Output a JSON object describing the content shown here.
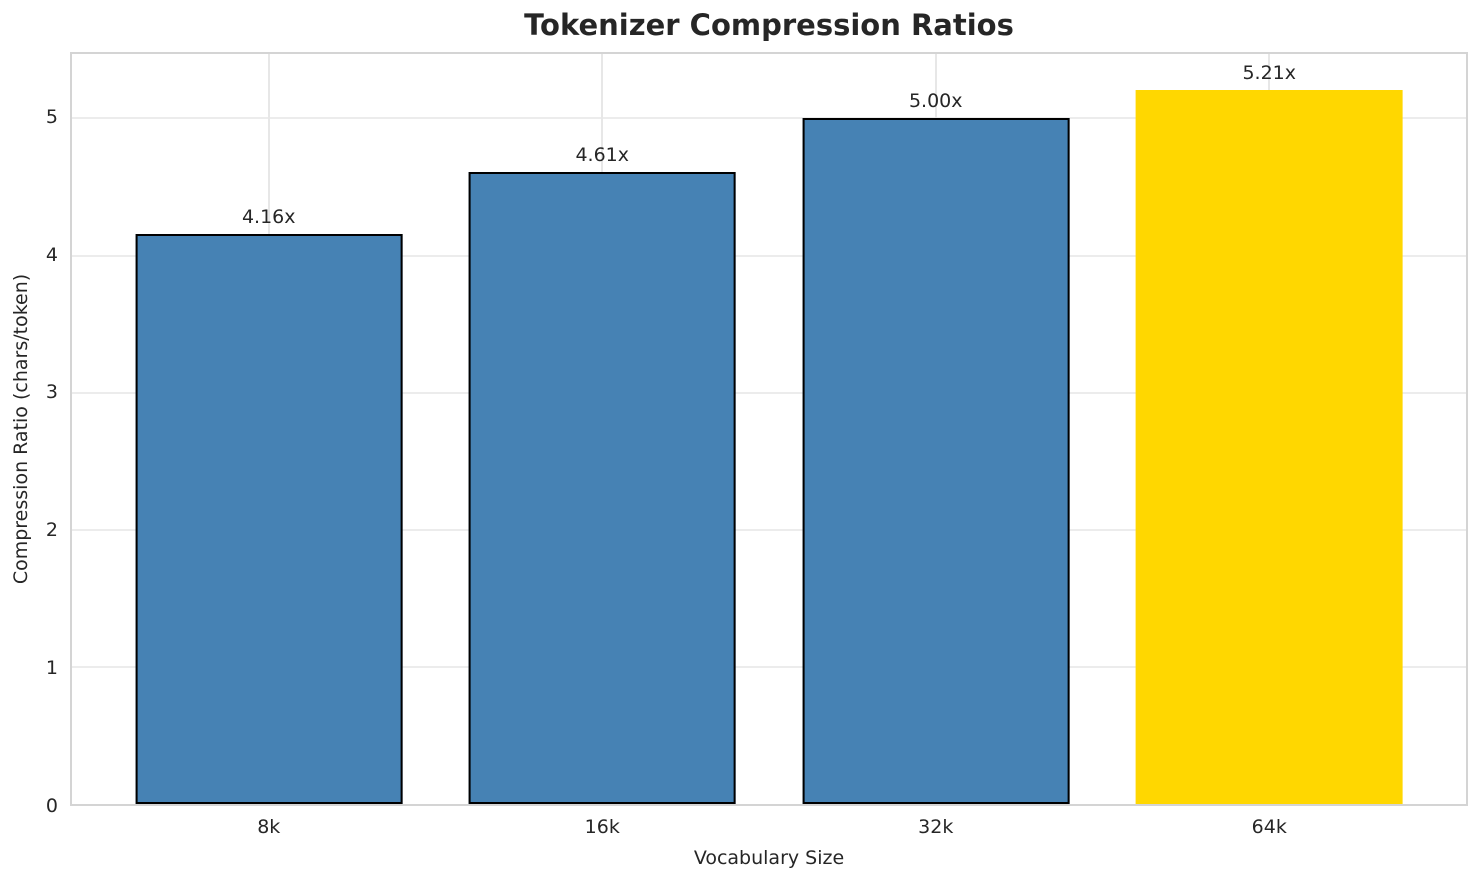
{
  "chart_data": {
    "type": "bar",
    "title": "Tokenizer Compression Ratios",
    "xlabel": "Vocabulary Size",
    "ylabel": "Compression Ratio (chars/token)",
    "categories": [
      "8k",
      "16k",
      "32k",
      "64k"
    ],
    "values": [
      4.16,
      4.61,
      5.0,
      5.21
    ],
    "bar_labels": [
      "4.16x",
      "4.61x",
      "5.00x",
      "5.21x"
    ],
    "bar_colors": [
      "#4682b4",
      "#4682b4",
      "#4682b4",
      "#ffd700"
    ],
    "bar_edge_colors": [
      "#000000",
      "#000000",
      "#000000",
      "none"
    ],
    "ylim": [
      0,
      5.47
    ],
    "yticks": [
      0,
      1,
      2,
      3,
      4,
      5
    ],
    "grid": "both",
    "legend": "none",
    "colors": {
      "default_bar": "#4682b4",
      "highlight_bar": "#ffd700",
      "bar_edge": "#000000",
      "grid": "#ececec",
      "spine": "#d4d4d4",
      "text": "#262626"
    }
  }
}
